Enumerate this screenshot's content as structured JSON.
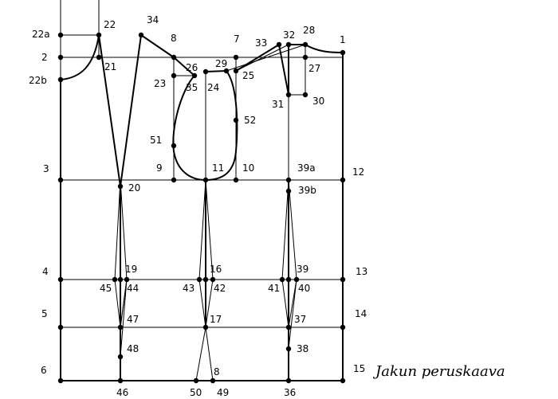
{
  "caption": "Jakun peruskaava",
  "point_labels": [
    "22a",
    "22",
    "34",
    "8",
    "7",
    "33",
    "32",
    "28",
    "1",
    "2",
    "21",
    "26",
    "29",
    "25",
    "27",
    "22b",
    "23",
    "35",
    "24",
    "31",
    "30",
    "52",
    "51",
    "3",
    "9",
    "11",
    "10",
    "39a",
    "12",
    "20",
    "39b",
    "4",
    "19",
    "16",
    "39",
    "13",
    "45",
    "44",
    "43",
    "42",
    "41",
    "40",
    "5",
    "47",
    "17",
    "37",
    "14",
    "48",
    "38",
    "6",
    "8",
    "15",
    "46",
    "50",
    "49",
    "36"
  ]
}
